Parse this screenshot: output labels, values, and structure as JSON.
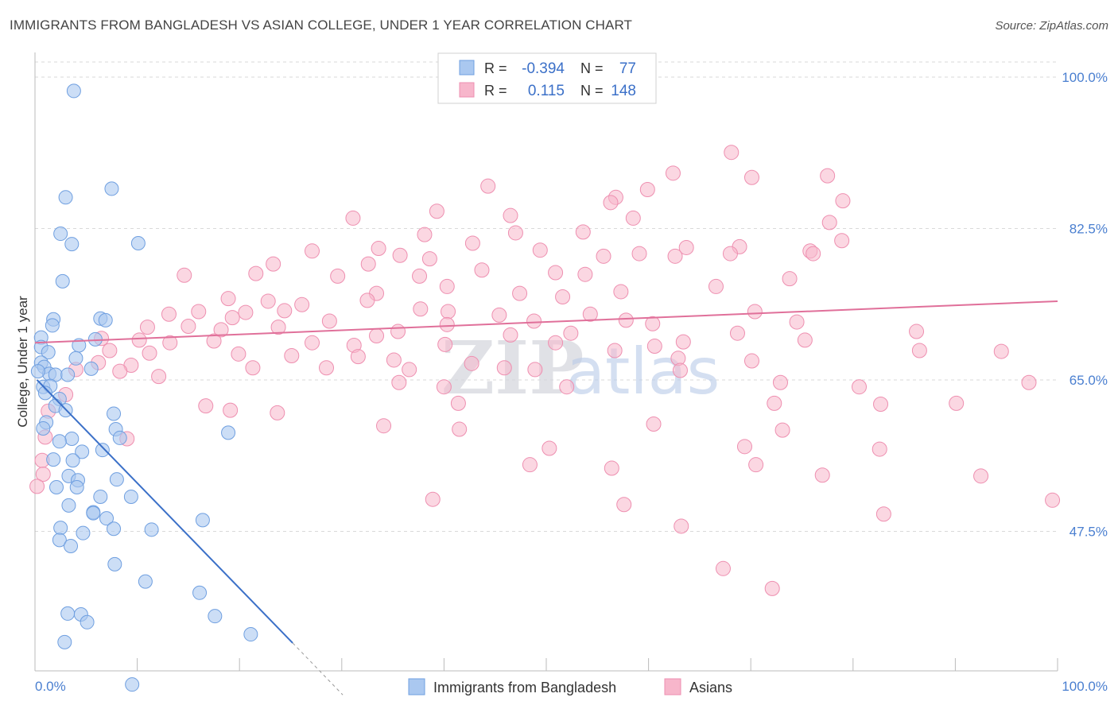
{
  "title": "IMMIGRANTS FROM BANGLADESH VS ASIAN COLLEGE, UNDER 1 YEAR CORRELATION CHART",
  "source": "Source: ZipAtlas.com",
  "watermark": {
    "zip": "ZIP",
    "atlas": "atlas"
  },
  "legend": {
    "r_label": "R =",
    "n_label": "N =",
    "rows": [
      {
        "r": "-0.394",
        "n": "77",
        "color": "#aac8f0"
      },
      {
        "r": "0.115",
        "n": "148",
        "color": "#f7b6cb"
      }
    ]
  },
  "bottom_legend": [
    {
      "label": "Immigrants from Bangladesh",
      "color": "#aac8f0"
    },
    {
      "label": "Asians",
      "color": "#f7b6cb"
    }
  ],
  "colors": {
    "blue_fill": "#aac8f0",
    "blue_stroke": "#6f9fe0",
    "blue_line": "#3b70c8",
    "pink_fill": "#f7b6cb",
    "pink_stroke": "#ee8fb0",
    "pink_line": "#e0709a",
    "grid": "#d9d9d9",
    "tick": "#4a7fd0"
  },
  "chart_data": {
    "type": "scatter",
    "title": "IMMIGRANTS FROM BANGLADESH VS ASIAN COLLEGE, UNDER 1 YEAR CORRELATION CHART",
    "xlabel": "",
    "ylabel": "College, Under 1 year",
    "xlim": [
      0,
      100
    ],
    "ylim": [
      29.5,
      102
    ],
    "x_tick_labels": [
      "0.0%",
      "100.0%"
    ],
    "y_ticks": [
      47.5,
      65.0,
      82.5,
      100.0
    ],
    "y_tick_labels": [
      "47.5%",
      "65.0%",
      "82.5%",
      "100.0%"
    ],
    "grid": true,
    "legend_position": "top-center",
    "series": [
      {
        "name": "Immigrants from Bangladesh",
        "color": "#aac8f0",
        "trend": {
          "x": [
            0.2,
            25.2
          ],
          "y": [
            65.0,
            34.6
          ],
          "dashed_to": [
            30.1,
            28.6
          ]
        },
        "points": [
          [
            3.8,
            98.4
          ],
          [
            7.5,
            87.1
          ],
          [
            3.0,
            86.1
          ],
          [
            2.5,
            81.9
          ],
          [
            3.6,
            80.7
          ],
          [
            10.1,
            80.8
          ],
          [
            2.7,
            76.4
          ],
          [
            1.8,
            72.0
          ],
          [
            1.7,
            71.3
          ],
          [
            6.4,
            72.1
          ],
          [
            6.9,
            71.9
          ],
          [
            5.9,
            69.7
          ],
          [
            4.3,
            69.0
          ],
          [
            0.6,
            69.9
          ],
          [
            0.6,
            68.8
          ],
          [
            1.3,
            68.2
          ],
          [
            4.0,
            67.5
          ],
          [
            0.6,
            67.0
          ],
          [
            0.9,
            66.5
          ],
          [
            1.4,
            65.7
          ],
          [
            2.0,
            65.6
          ],
          [
            3.2,
            65.6
          ],
          [
            5.5,
            66.3
          ],
          [
            0.3,
            66.0
          ],
          [
            0.8,
            64.2
          ],
          [
            1.5,
            64.3
          ],
          [
            1.0,
            63.5
          ],
          [
            2.4,
            62.8
          ],
          [
            2.0,
            62.0
          ],
          [
            3.0,
            61.5
          ],
          [
            7.7,
            61.1
          ],
          [
            1.1,
            60.1
          ],
          [
            0.8,
            59.4
          ],
          [
            7.9,
            59.3
          ],
          [
            18.9,
            58.9
          ],
          [
            8.3,
            58.3
          ],
          [
            3.6,
            58.2
          ],
          [
            2.4,
            57.9
          ],
          [
            4.6,
            56.7
          ],
          [
            6.6,
            56.9
          ],
          [
            1.8,
            55.8
          ],
          [
            3.7,
            55.7
          ],
          [
            3.3,
            53.9
          ],
          [
            4.2,
            53.4
          ],
          [
            8.0,
            53.5
          ],
          [
            2.1,
            52.6
          ],
          [
            4.1,
            52.6
          ],
          [
            6.4,
            51.5
          ],
          [
            9.4,
            51.5
          ],
          [
            3.3,
            50.5
          ],
          [
            5.7,
            49.7
          ],
          [
            5.7,
            49.6
          ],
          [
            7.0,
            49.0
          ],
          [
            16.4,
            48.8
          ],
          [
            2.5,
            47.9
          ],
          [
            7.7,
            47.8
          ],
          [
            11.4,
            47.7
          ],
          [
            4.7,
            47.3
          ],
          [
            2.4,
            46.5
          ],
          [
            3.5,
            45.8
          ],
          [
            7.8,
            43.7
          ],
          [
            10.8,
            41.7
          ],
          [
            16.1,
            40.4
          ],
          [
            3.2,
            38.0
          ],
          [
            4.5,
            37.9
          ],
          [
            5.1,
            37.0
          ],
          [
            17.6,
            37.7
          ],
          [
            21.1,
            35.6
          ],
          [
            2.9,
            34.7
          ],
          [
            9.5,
            29.8
          ]
        ]
      },
      {
        "name": "Asians",
        "color": "#f7b6cb",
        "trend": {
          "x": [
            0,
            100
          ],
          "y": [
            69.3,
            74.1
          ]
        },
        "points": [
          [
            68.1,
            91.3
          ],
          [
            62.4,
            88.9
          ],
          [
            70.1,
            88.4
          ],
          [
            77.5,
            88.6
          ],
          [
            44.3,
            87.4
          ],
          [
            56.8,
            86.1
          ],
          [
            59.9,
            87.0
          ],
          [
            56.3,
            85.5
          ],
          [
            79.0,
            85.7
          ],
          [
            39.3,
            84.5
          ],
          [
            46.5,
            84.0
          ],
          [
            58.5,
            83.7
          ],
          [
            31.1,
            83.7
          ],
          [
            77.7,
            83.2
          ],
          [
            47.0,
            82.0
          ],
          [
            53.6,
            82.1
          ],
          [
            38.1,
            81.8
          ],
          [
            78.9,
            81.1
          ],
          [
            63.7,
            80.3
          ],
          [
            33.6,
            80.2
          ],
          [
            42.8,
            80.8
          ],
          [
            49.4,
            80.0
          ],
          [
            68.9,
            80.4
          ],
          [
            27.1,
            79.9
          ],
          [
            68.0,
            79.6
          ],
          [
            59.1,
            79.6
          ],
          [
            75.8,
            79.9
          ],
          [
            35.7,
            79.4
          ],
          [
            38.6,
            79.0
          ],
          [
            55.6,
            79.3
          ],
          [
            62.6,
            79.3
          ],
          [
            76.1,
            79.6
          ],
          [
            23.3,
            78.4
          ],
          [
            32.6,
            78.4
          ],
          [
            43.7,
            77.7
          ],
          [
            50.9,
            77.4
          ],
          [
            21.6,
            77.3
          ],
          [
            37.6,
            77.0
          ],
          [
            53.8,
            77.2
          ],
          [
            73.8,
            76.7
          ],
          [
            14.6,
            77.1
          ],
          [
            29.6,
            77.0
          ],
          [
            40.3,
            75.8
          ],
          [
            66.6,
            75.8
          ],
          [
            57.3,
            75.2
          ],
          [
            33.4,
            75.0
          ],
          [
            47.4,
            75.0
          ],
          [
            51.6,
            74.6
          ],
          [
            18.9,
            74.4
          ],
          [
            22.8,
            74.1
          ],
          [
            26.1,
            73.7
          ],
          [
            37.7,
            73.2
          ],
          [
            40.4,
            72.9
          ],
          [
            32.5,
            74.2
          ],
          [
            24.4,
            73.0
          ],
          [
            16.0,
            72.9
          ],
          [
            20.6,
            72.8
          ],
          [
            45.4,
            72.5
          ],
          [
            54.3,
            72.6
          ],
          [
            70.4,
            72.9
          ],
          [
            13.1,
            72.6
          ],
          [
            19.3,
            72.2
          ],
          [
            28.8,
            71.8
          ],
          [
            57.8,
            71.9
          ],
          [
            74.5,
            71.7
          ],
          [
            33.4,
            70.1
          ],
          [
            40.3,
            71.4
          ],
          [
            48.8,
            71.8
          ],
          [
            60.4,
            71.5
          ],
          [
            11.0,
            71.1
          ],
          [
            15.0,
            71.2
          ],
          [
            18.2,
            70.8
          ],
          [
            23.8,
            71.1
          ],
          [
            35.5,
            70.6
          ],
          [
            46.5,
            70.2
          ],
          [
            52.4,
            70.4
          ],
          [
            68.7,
            70.4
          ],
          [
            86.2,
            70.6
          ],
          [
            6.5,
            69.8
          ],
          [
            10.2,
            69.6
          ],
          [
            13.2,
            69.3
          ],
          [
            17.5,
            69.5
          ],
          [
            27.1,
            69.3
          ],
          [
            31.2,
            69.0
          ],
          [
            40.1,
            69.1
          ],
          [
            50.9,
            69.3
          ],
          [
            60.6,
            68.9
          ],
          [
            63.4,
            69.4
          ],
          [
            75.3,
            69.6
          ],
          [
            94.5,
            68.3
          ],
          [
            7.3,
            68.4
          ],
          [
            11.2,
            68.1
          ],
          [
            19.9,
            68.0
          ],
          [
            25.1,
            67.8
          ],
          [
            31.6,
            67.7
          ],
          [
            35.1,
            67.3
          ],
          [
            42.7,
            66.9
          ],
          [
            48.9,
            66.2
          ],
          [
            56.7,
            68.4
          ],
          [
            62.9,
            67.5
          ],
          [
            70.1,
            67.2
          ],
          [
            86.5,
            68.4
          ],
          [
            6.2,
            67.0
          ],
          [
            9.4,
            66.7
          ],
          [
            21.3,
            66.4
          ],
          [
            28.5,
            66.4
          ],
          [
            36.6,
            66.2
          ],
          [
            45.9,
            66.4
          ],
          [
            63.1,
            66.1
          ],
          [
            72.9,
            64.7
          ],
          [
            80.6,
            64.2
          ],
          [
            97.2,
            64.7
          ],
          [
            4.0,
            66.2
          ],
          [
            8.3,
            66.0
          ],
          [
            12.1,
            65.4
          ],
          [
            35.6,
            64.7
          ],
          [
            40.0,
            64.2
          ],
          [
            52.0,
            64.2
          ],
          [
            41.4,
            62.3
          ],
          [
            72.3,
            62.3
          ],
          [
            82.7,
            62.2
          ],
          [
            90.1,
            62.3
          ],
          [
            16.7,
            62.0
          ],
          [
            3.0,
            63.3
          ],
          [
            1.3,
            61.4
          ],
          [
            19.1,
            61.5
          ],
          [
            23.7,
            61.2
          ],
          [
            34.1,
            59.7
          ],
          [
            41.5,
            59.3
          ],
          [
            60.5,
            59.9
          ],
          [
            73.1,
            59.2
          ],
          [
            9.0,
            58.2
          ],
          [
            1.0,
            58.4
          ],
          [
            50.3,
            57.1
          ],
          [
            69.4,
            57.3
          ],
          [
            82.6,
            57.0
          ],
          [
            0.7,
            55.7
          ],
          [
            48.4,
            55.2
          ],
          [
            70.5,
            55.2
          ],
          [
            56.4,
            54.8
          ],
          [
            77.0,
            54.0
          ],
          [
            0.8,
            54.1
          ],
          [
            92.5,
            53.9
          ],
          [
            38.9,
            51.2
          ],
          [
            57.6,
            50.6
          ],
          [
            83.0,
            49.5
          ],
          [
            63.2,
            48.1
          ],
          [
            0.2,
            52.7
          ],
          [
            67.3,
            43.2
          ],
          [
            99.5,
            51.1
          ],
          [
            72.1,
            40.9
          ]
        ]
      }
    ]
  }
}
